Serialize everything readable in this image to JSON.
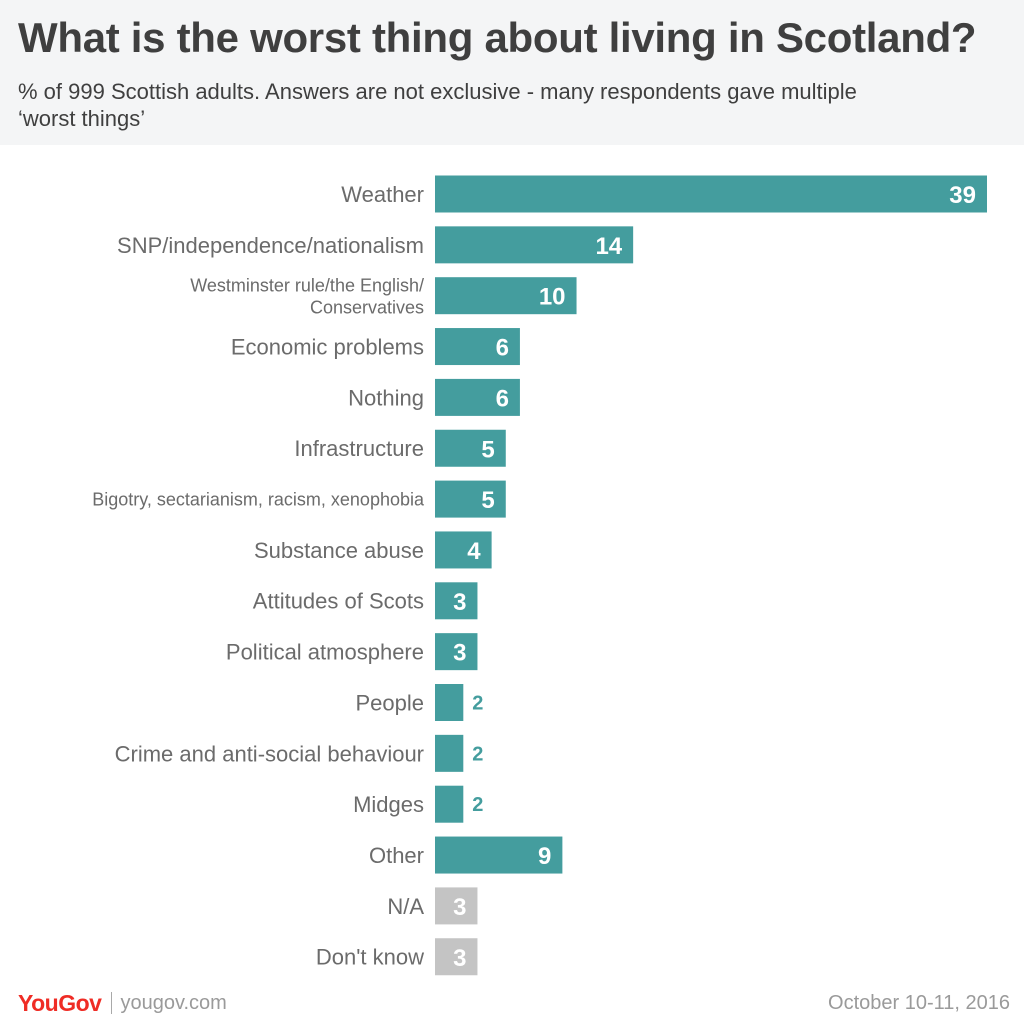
{
  "header": {
    "title": "What is the worst thing about living in Scotland?",
    "subtitle": "% of 999 Scottish adults. Answers are not exclusive - many respondents gave multiple ‘worst things’"
  },
  "chart_data": {
    "type": "bar",
    "orientation": "horizontal",
    "categories": [
      "Weather",
      "SNP/independence/nationalism",
      "Westminster rule/the English/ Conservatives",
      "Economic problems",
      "Nothing",
      "Infrastructure",
      "Bigotry, sectarianism, racism, xenophobia",
      "Substance abuse",
      "Attitudes of Scots",
      "Political atmosphere",
      "People",
      "Crime and anti-social behaviour",
      "Midges",
      "Other",
      "N/A",
      "Don't know"
    ],
    "values": [
      39,
      14,
      10,
      6,
      6,
      5,
      5,
      4,
      3,
      3,
      2,
      2,
      2,
      9,
      3,
      3
    ],
    "title": "What is the worst thing about living in Scotland?",
    "xlabel": "",
    "ylabel": "",
    "xlim": [
      0,
      39
    ],
    "grid": false,
    "legend": "none",
    "colors": {
      "primary": "#449d9e",
      "muted": "#c4c4c4"
    },
    "muted_categories": [
      "N/A",
      "Don't know"
    ]
  },
  "footer": {
    "brand": {
      "you": "You",
      "gov": "Gov"
    },
    "site": "yougov.com",
    "date": "October 10-11, 2016"
  },
  "icons": {
    "logo": "yougov-logo"
  }
}
